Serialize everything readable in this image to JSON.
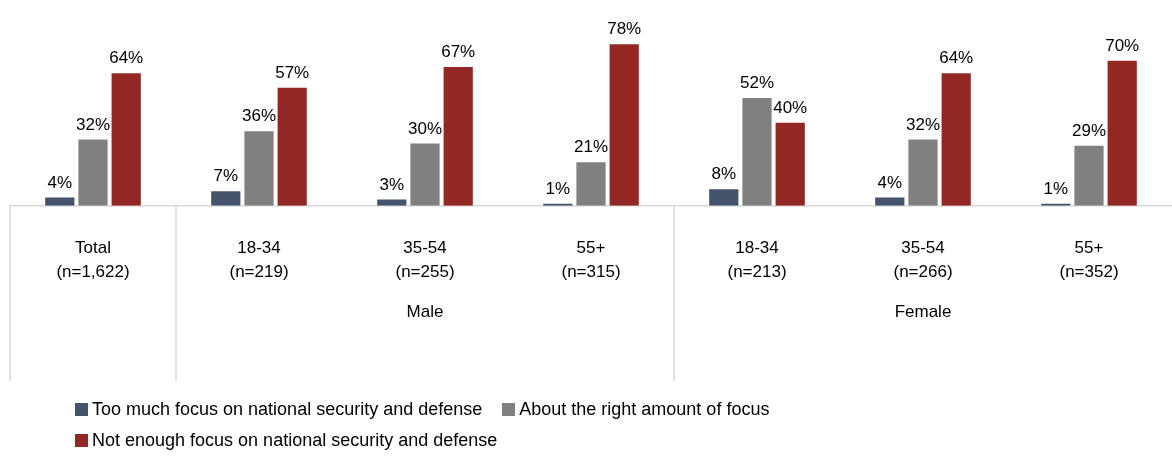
{
  "chart_data": {
    "type": "bar",
    "categories": [
      "Total\n(n=1,622)",
      "18-34\n(n=219)",
      "35-54\n(n=255)",
      "55+\n(n=315)",
      "18-34\n(n=213)",
      "35-54\n(n=266)",
      "55+\n(n=352)"
    ],
    "series": [
      {
        "name": "Too much focus on national security and defense",
        "color": "#44546a",
        "values": [
          4,
          7,
          3,
          1,
          8,
          4,
          1
        ],
        "value_labels": [
          "4%",
          "7%",
          "3%",
          "1%",
          "8%",
          "4%",
          "1%"
        ]
      },
      {
        "name": "About the right amount of focus",
        "color": "#808080",
        "values": [
          32,
          36,
          30,
          21,
          52,
          32,
          29
        ],
        "value_labels": [
          "32%",
          "36%",
          "30%",
          "21%",
          "52%",
          "32%",
          "29%"
        ]
      },
      {
        "name": "Not enough focus on national security and defense",
        "color": "#922723",
        "values": [
          64,
          57,
          67,
          78,
          40,
          64,
          70
        ],
        "value_labels": [
          "64%",
          "57%",
          "67%",
          "78%",
          "40%",
          "64%",
          "70%"
        ]
      }
    ],
    "annotations": [
      "Male",
      "Female"
    ],
    "legend": "bottom",
    "grid": false
  }
}
